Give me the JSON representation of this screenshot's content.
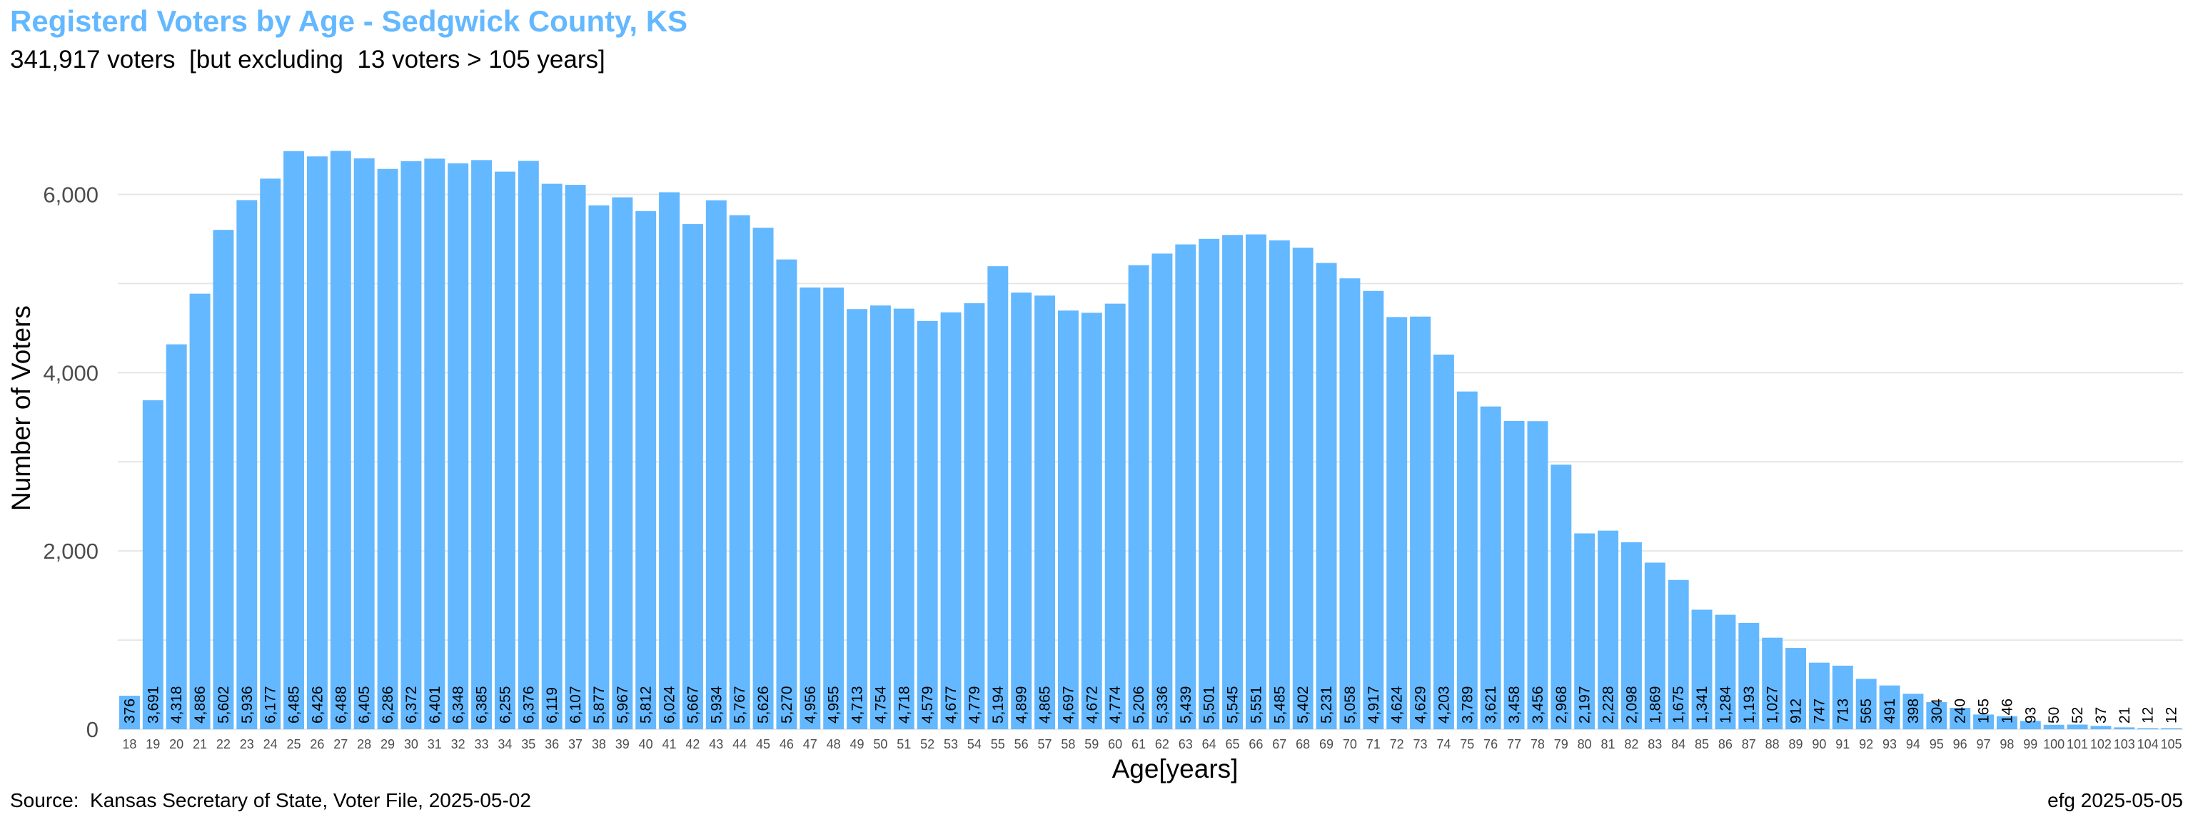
{
  "header": {
    "title": "Registerd Voters by Age - Sedgwick County, KS",
    "subtitle": "341,917 voters  [but excluding  13 voters > 105 years]"
  },
  "footer": {
    "source": "Source:  Kansas Secretary of State, Voter File, 2025-05-02",
    "credit": "efg 2025-05-05"
  },
  "colors": {
    "bar": "#63b8ff",
    "title": "#63b8ff",
    "grid": "#e6e6e6"
  },
  "chart_data": {
    "type": "bar",
    "title": "Registerd Voters by Age - Sedgwick County, KS",
    "xlabel": "Age[years]",
    "ylabel": "Number of Voters",
    "ylim": [
      0,
      6700
    ],
    "yticks": [
      0,
      2000,
      4000,
      6000
    ],
    "ytick_labels": [
      "0",
      "2,000",
      "4,000",
      "6,000"
    ],
    "grid": true,
    "categories": [
      "18",
      "19",
      "20",
      "21",
      "22",
      "23",
      "24",
      "25",
      "26",
      "27",
      "28",
      "29",
      "30",
      "31",
      "32",
      "33",
      "34",
      "35",
      "36",
      "37",
      "38",
      "39",
      "40",
      "41",
      "42",
      "43",
      "44",
      "45",
      "46",
      "47",
      "48",
      "49",
      "50",
      "51",
      "52",
      "53",
      "54",
      "55",
      "56",
      "57",
      "58",
      "59",
      "60",
      "61",
      "62",
      "63",
      "64",
      "65",
      "66",
      "67",
      "68",
      "69",
      "70",
      "71",
      "72",
      "73",
      "74",
      "75",
      "76",
      "77",
      "78",
      "79",
      "80",
      "81",
      "82",
      "83",
      "84",
      "85",
      "86",
      "87",
      "88",
      "89",
      "90",
      "91",
      "92",
      "93",
      "94",
      "95",
      "96",
      "97",
      "98",
      "99",
      "100",
      "101",
      "102",
      "103",
      "104",
      "105"
    ],
    "values": [
      376,
      3691,
      4318,
      4886,
      5602,
      5936,
      6177,
      6485,
      6426,
      6488,
      6405,
      6286,
      6372,
      6401,
      6348,
      6385,
      6255,
      6376,
      6119,
      6107,
      5877,
      5967,
      5812,
      6024,
      5667,
      5934,
      5767,
      5626,
      5270,
      4956,
      4955,
      4713,
      4754,
      4718,
      4579,
      4677,
      4779,
      5194,
      4899,
      4865,
      4697,
      4672,
      4774,
      5206,
      5336,
      5439,
      5501,
      5545,
      5551,
      5485,
      5402,
      5231,
      5058,
      4917,
      4624,
      4629,
      4203,
      3789,
      3621,
      3458,
      3456,
      2968,
      2197,
      2228,
      2098,
      1869,
      1675,
      1341,
      1284,
      1193,
      1027,
      912,
      747,
      713,
      565,
      491,
      398,
      304,
      240,
      165,
      146,
      93,
      50,
      52,
      37,
      21,
      12,
      12
    ],
    "value_labels": [
      "376",
      "3,691",
      "4,318",
      "4,886",
      "5,602",
      "5,936",
      "6,177",
      "6,485",
      "6,426",
      "6,488",
      "6,405",
      "6,286",
      "6,372",
      "6,401",
      "6,348",
      "6,385",
      "6,255",
      "6,376",
      "6,119",
      "6,107",
      "5,877",
      "5,967",
      "5,812",
      "6,024",
      "5,667",
      "5,934",
      "5,767",
      "5,626",
      "5,270",
      "4,956",
      "4,955",
      "4,713",
      "4,754",
      "4,718",
      "4,579",
      "4,677",
      "4,779",
      "5,194",
      "4,899",
      "4,865",
      "4,697",
      "4,672",
      "4,774",
      "5,206",
      "5,336",
      "5,439",
      "5,501",
      "5,545",
      "5,551",
      "5,485",
      "5,402",
      "5,231",
      "5,058",
      "4,917",
      "4,624",
      "4,629",
      "4,203",
      "3,789",
      "3,621",
      "3,458",
      "3,456",
      "2,968",
      "2,197",
      "2,228",
      "2,098",
      "1,869",
      "1,675",
      "1,341",
      "1,284",
      "1,193",
      "1,027",
      "912",
      "747",
      "713",
      "565",
      "491",
      "398",
      "304",
      "240",
      "165",
      "146",
      "93",
      "50",
      "52",
      "37",
      "21",
      "12",
      "12"
    ]
  }
}
